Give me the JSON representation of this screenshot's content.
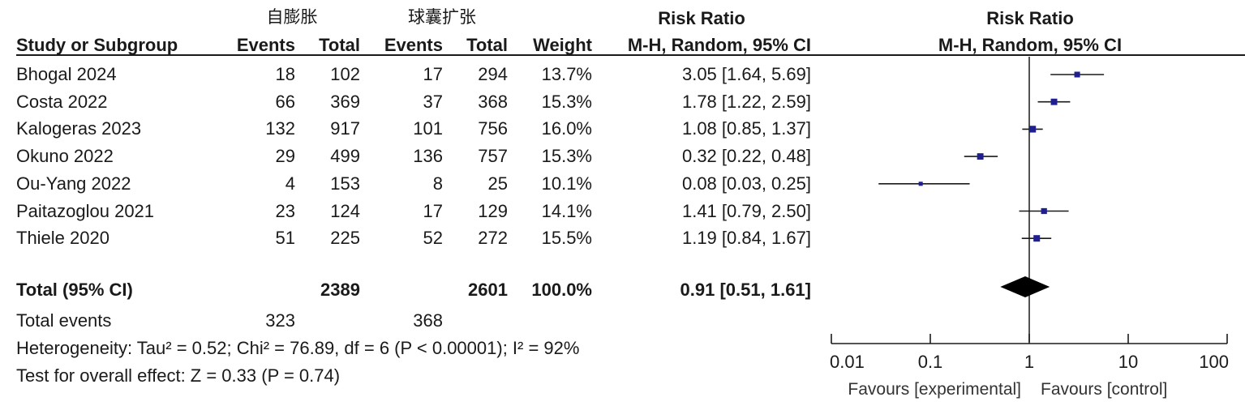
{
  "group_labels": {
    "experimental": "自膨胀",
    "control": "球囊扩张"
  },
  "header": {
    "study": "Study or Subgroup",
    "events": "Events",
    "total": "Total",
    "weight": "Weight",
    "effect_title": "Risk Ratio",
    "effect_method": "M-H, Random, 95% CI",
    "plot_title": "Risk Ratio",
    "plot_method": "M-H, Random, 95% CI"
  },
  "studies": [
    {
      "name": "Bhogal 2024",
      "e_events": "18",
      "e_total": "102",
      "c_events": "17",
      "c_total": "294",
      "weight": "13.7%",
      "ci_text": "3.05 [1.64, 5.69]"
    },
    {
      "name": "Costa 2022",
      "e_events": "66",
      "e_total": "369",
      "c_events": "37",
      "c_total": "368",
      "weight": "15.3%",
      "ci_text": "1.78 [1.22, 2.59]"
    },
    {
      "name": "Kalogeras 2023",
      "e_events": "132",
      "e_total": "917",
      "c_events": "101",
      "c_total": "756",
      "weight": "16.0%",
      "ci_text": "1.08 [0.85, 1.37]"
    },
    {
      "name": "Okuno 2022",
      "e_events": "29",
      "e_total": "499",
      "c_events": "136",
      "c_total": "757",
      "weight": "15.3%",
      "ci_text": "0.32 [0.22, 0.48]"
    },
    {
      "name": "Ou-Yang  2022",
      "e_events": "4",
      "e_total": "153",
      "c_events": "8",
      "c_total": "25",
      "weight": "10.1%",
      "ci_text": "0.08 [0.03, 0.25]"
    },
    {
      "name": "Paitazoglou 2021",
      "e_events": "23",
      "e_total": "124",
      "c_events": "17",
      "c_total": "129",
      "weight": "14.1%",
      "ci_text": "1.41 [0.79, 2.50]"
    },
    {
      "name": "Thiele 2020",
      "e_events": "51",
      "e_total": "225",
      "c_events": "52",
      "c_total": "272",
      "weight": "15.5%",
      "ci_text": "1.19 [0.84, 1.67]"
    }
  ],
  "total": {
    "label": "Total (95% CI)",
    "e_total": "2389",
    "c_total": "2601",
    "weight": "100.0%",
    "ci_text": "0.91 [0.51, 1.61]"
  },
  "total_events": {
    "label": "Total events",
    "e_events": "323",
    "c_events": "368"
  },
  "heterogeneity": "Heterogeneity: Tau² = 0.52; Chi² = 76.89, df = 6 (P < 0.00001); I² = 92%",
  "overall_effect": "Test for overall effect: Z = 0.33 (P = 0.74)",
  "colors": {
    "marker": "#1f1f8f",
    "line": "#1a1a1a",
    "diamond": "#000000"
  },
  "chart_data": {
    "type": "scatter",
    "title": "Risk Ratio",
    "subtitle": "M-H, Random, 95% CI",
    "xscale": "log",
    "xlim": [
      0.01,
      100
    ],
    "xticks": [
      0.01,
      0.1,
      1,
      10,
      100
    ],
    "xtick_labels": [
      "0.01",
      "0.1",
      "1",
      "10",
      "100"
    ],
    "favours_left": "Favours [experimental]",
    "favours_right": "Favours [control]",
    "reference_line": 1,
    "grid": false,
    "studies": [
      {
        "name": "Bhogal 2024",
        "rr": 3.05,
        "lo": 1.64,
        "hi": 5.69,
        "weight": 13.7
      },
      {
        "name": "Costa 2022",
        "rr": 1.78,
        "lo": 1.22,
        "hi": 2.59,
        "weight": 15.3
      },
      {
        "name": "Kalogeras 2023",
        "rr": 1.08,
        "lo": 0.85,
        "hi": 1.37,
        "weight": 16.0
      },
      {
        "name": "Okuno 2022",
        "rr": 0.32,
        "lo": 0.22,
        "hi": 0.48,
        "weight": 15.3
      },
      {
        "name": "Ou-Yang  2022",
        "rr": 0.08,
        "lo": 0.03,
        "hi": 0.25,
        "weight": 10.1
      },
      {
        "name": "Paitazoglou 2021",
        "rr": 1.41,
        "lo": 0.79,
        "hi": 2.5,
        "weight": 14.1
      },
      {
        "name": "Thiele 2020",
        "rr": 1.19,
        "lo": 0.84,
        "hi": 1.67,
        "weight": 15.5
      }
    ],
    "pooled": {
      "name": "Total (95% CI)",
      "rr": 0.91,
      "lo": 0.51,
      "hi": 1.61
    }
  }
}
